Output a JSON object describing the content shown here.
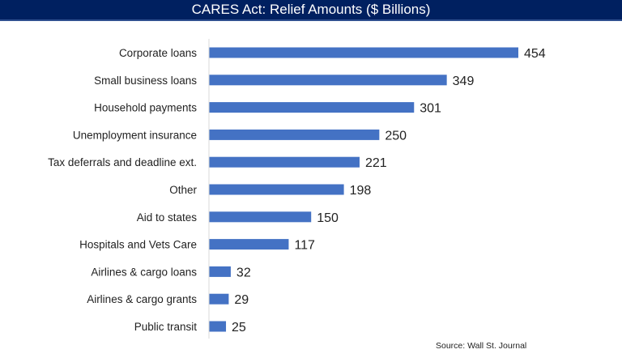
{
  "chart_data": {
    "type": "bar",
    "orientation": "horizontal",
    "title": "CARES Act:  Relief Amounts ($ Billions)",
    "categories": [
      "Corporate loans",
      "Small business loans",
      "Household payments",
      "Unemployment insurance",
      "Tax deferrals and deadline ext.",
      "Other",
      "Aid to states",
      "Hospitals and Vets Care",
      "Airlines & cargo loans",
      "Airlines & cargo grants",
      "Public transit"
    ],
    "values": [
      454,
      349,
      301,
      250,
      221,
      198,
      150,
      117,
      32,
      29,
      25
    ],
    "xlabel": "",
    "ylabel": "",
    "xlim": [
      0,
      454
    ],
    "grid": false,
    "bar_color": "#4472C4",
    "source": "Source:  Wall St. Journal"
  }
}
